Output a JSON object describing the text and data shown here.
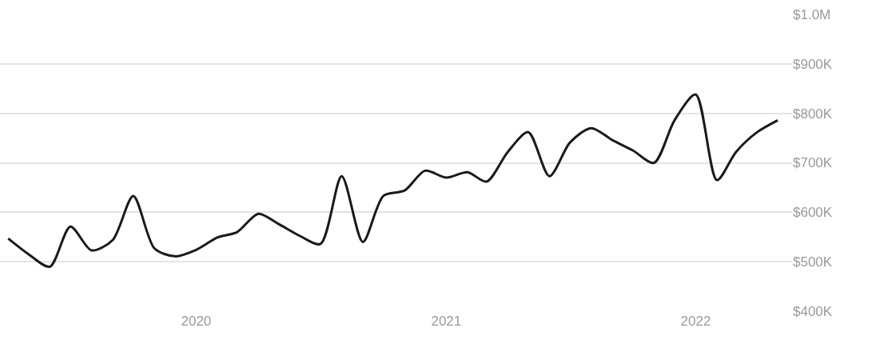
{
  "chart_data": {
    "type": "line",
    "x": [
      "2019-04",
      "2019-05",
      "2019-06",
      "2019-07",
      "2019-08",
      "2019-09",
      "2019-10",
      "2019-11",
      "2019-12",
      "2020-01",
      "2020-02",
      "2020-03",
      "2020-04",
      "2020-05",
      "2020-06",
      "2020-07",
      "2020-08",
      "2020-09",
      "2020-10",
      "2020-11",
      "2020-12",
      "2021-01",
      "2021-02",
      "2021-03",
      "2021-04",
      "2021-05",
      "2021-06",
      "2021-07",
      "2021-08",
      "2021-09",
      "2021-10",
      "2021-11",
      "2021-12",
      "2022-01",
      "2022-02",
      "2022-03",
      "2022-04",
      "2022-05"
    ],
    "series": [
      {
        "color": "#1a1a1a",
        "values": [
          547000,
          515000,
          490000,
          571000,
          523000,
          544000,
          633000,
          527000,
          511000,
          524000,
          549000,
          560000,
          597000,
          576000,
          552000,
          536000,
          673000,
          540000,
          633000,
          644000,
          684000,
          670000,
          681000,
          662000,
          722000,
          762000,
          673000,
          741000,
          770000,
          746000,
          725000,
          700000,
          786000,
          838000,
          665000,
          722000,
          762000,
          786000
        ]
      }
    ],
    "xlim": [
      "2019-03-20",
      "2022-05-22"
    ],
    "xticks": [
      "2020",
      "2021",
      "2022"
    ],
    "ylim": [
      400000,
      1000000
    ],
    "yticks": [
      {
        "value": 400000,
        "label": "$400K"
      },
      {
        "value": 500000,
        "label": "$500K"
      },
      {
        "value": 600000,
        "label": "$600K"
      },
      {
        "value": 700000,
        "label": "$700K"
      },
      {
        "value": 800000,
        "label": "$800K"
      },
      {
        "value": 900000,
        "label": "$900K"
      },
      {
        "value": 1000000,
        "label": "$1.0M"
      }
    ],
    "grid": "y",
    "marker": "none",
    "line_style": "solid"
  }
}
